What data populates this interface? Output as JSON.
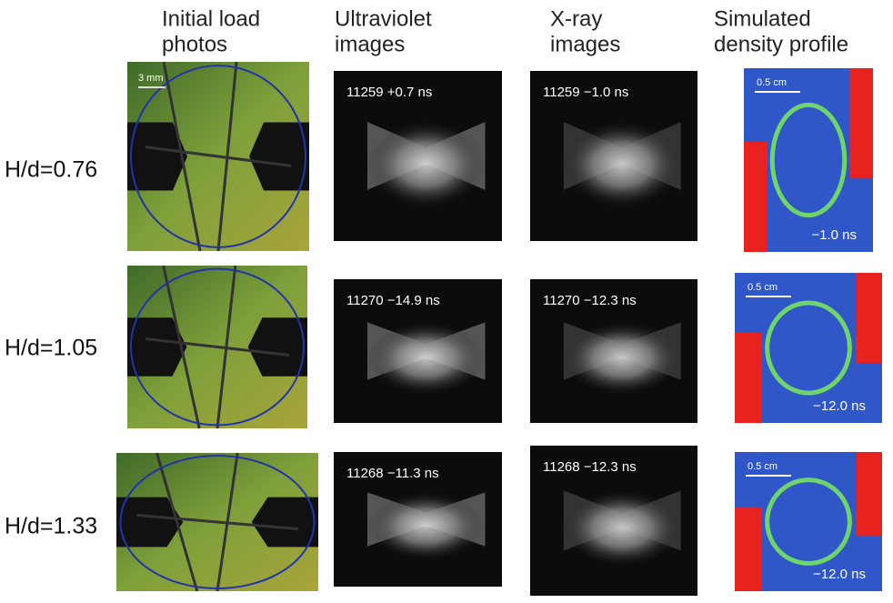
{
  "columns": [
    {
      "lines": [
        "Initial load",
        "photos"
      ]
    },
    {
      "lines": [
        "Ultraviolet",
        "images"
      ]
    },
    {
      "lines": [
        "X-ray",
        "images"
      ]
    },
    {
      "lines": [
        "Simulated",
        "density profile"
      ]
    }
  ],
  "rows": [
    {
      "label": "H/d=0.76",
      "photo_scale": "3 mm",
      "uv_label": "11259 +0.7 ns",
      "xray_label": "11259 −1.0 ns",
      "sim_scale": "0.5 cm",
      "sim_label": "−1.0 ns"
    },
    {
      "label": "H/d=1.05",
      "uv_label": "11270 −14.9 ns",
      "xray_label": "11270 −12.3 ns",
      "sim_scale": "0.5 cm",
      "sim_label": "−12.0 ns"
    },
    {
      "label": "H/d=1.33",
      "uv_label": "11268 −11.3 ns",
      "xray_label": "11268 −12.3 ns",
      "sim_scale": "0.5 cm",
      "sim_label": "−12.0 ns"
    }
  ]
}
